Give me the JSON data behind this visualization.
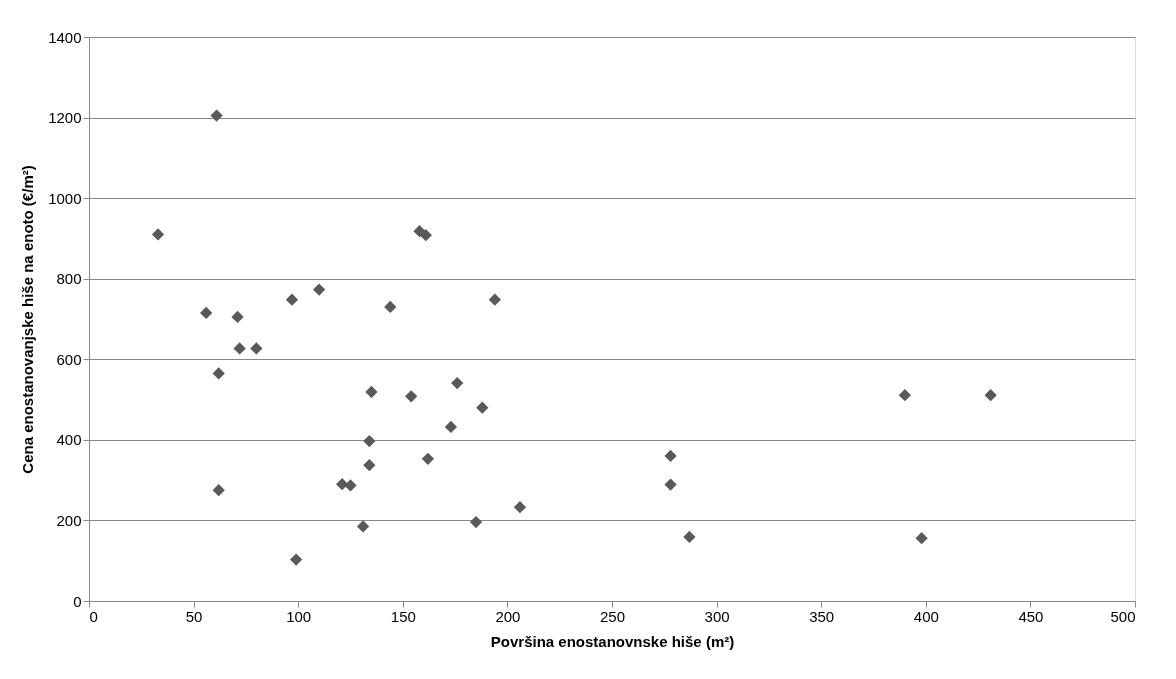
{
  "chart_data": {
    "type": "scatter",
    "xlabel": "Površina enostanovnske hiše (m²)",
    "ylabel": "Cena enostanovanjske hiše na enoto (€/m²)",
    "x": [
      33,
      61,
      56,
      71,
      72,
      80,
      62,
      62,
      97,
      110,
      144,
      158,
      161,
      194,
      99,
      121,
      125,
      131,
      134,
      134,
      135,
      154,
      162,
      173,
      176,
      185,
      188,
      206,
      278,
      278,
      287,
      390,
      398,
      431
    ],
    "series": [
      {
        "color": "#595959",
        "values": [
          910,
          1205,
          715,
          705,
          627,
          627,
          565,
          275,
          748,
          773,
          730,
          918,
          908,
          748,
          103,
          290,
          287,
          185,
          337,
          397,
          519,
          508,
          353,
          432,
          541,
          196,
          480,
          233,
          360,
          289,
          159,
          511,
          156,
          511
        ]
      }
    ],
    "xlim": [
      0,
      500
    ],
    "xticks": [
      0,
      50,
      100,
      150,
      200,
      250,
      300,
      350,
      400,
      450,
      500
    ],
    "ylim": [
      0,
      1400
    ],
    "yticks": [
      0,
      200,
      400,
      600,
      800,
      1000,
      1200,
      1400
    ],
    "grid": "y",
    "marker": "diamond",
    "legend": false
  }
}
